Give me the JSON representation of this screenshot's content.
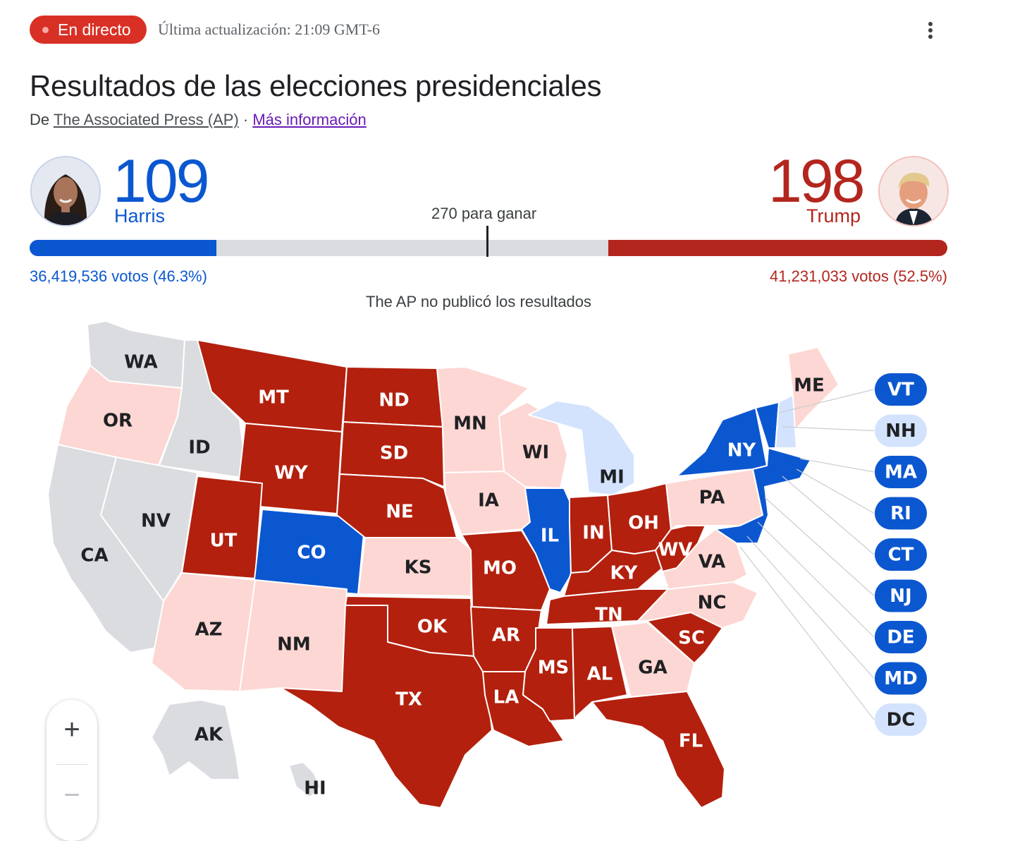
{
  "header": {
    "live_label": "En directo",
    "updated": "Última actualización: 21:09 GMT-6"
  },
  "title": "Resultados de las elecciones presidenciales",
  "source": {
    "prefix": "De",
    "publisher": "The Associated Press (AP)",
    "separator": "·",
    "more_link": "Más información"
  },
  "candidates": {
    "harris": {
      "name": "Harris",
      "electoral_votes": "109",
      "popular_votes": "36,419,536 votos (46.3%)",
      "bar_fraction": 0.2035,
      "color": "#0b57d0"
    },
    "trump": {
      "name": "Trump",
      "electoral_votes": "198",
      "popular_votes": "41,231,033 votos (52.5%)",
      "bar_fraction": 0.3695,
      "color": "#b3261e"
    }
  },
  "threshold_label": "270 para ganar",
  "ap_note": "The AP no publicó los resultados",
  "colors": {
    "dem_called": "#0b57d0",
    "dem_leaning": "#d3e3fd",
    "rep_called": "#b3200e",
    "rep_leaning": "#fdd7d3",
    "no_results": "#dadce0"
  },
  "map": {
    "states": {
      "WA": "no_results",
      "OR": "rep_leaning",
      "CA": "no_results",
      "ID": "no_results",
      "NV": "no_results",
      "MT": "rep_called",
      "WY": "rep_called",
      "UT": "rep_called",
      "AZ": "rep_leaning",
      "CO": "dem_called",
      "NM": "rep_leaning",
      "ND": "rep_called",
      "SD": "rep_called",
      "NE": "rep_called",
      "KS": "rep_leaning",
      "OK": "rep_called",
      "TX": "rep_called",
      "MN": "rep_leaning",
      "IA": "rep_leaning",
      "MO": "rep_called",
      "AR": "rep_called",
      "LA": "rep_called",
      "WI": "rep_leaning",
      "IL": "dem_called",
      "MI": "dem_leaning",
      "IN": "rep_called",
      "OH": "rep_called",
      "KY": "rep_called",
      "TN": "rep_called",
      "MS": "rep_called",
      "AL": "rep_called",
      "GA": "rep_leaning",
      "FL": "rep_called",
      "SC": "rep_called",
      "NC": "rep_leaning",
      "VA": "rep_leaning",
      "WV": "rep_called",
      "PA": "rep_leaning",
      "NY": "dem_called",
      "ME": "rep_leaning",
      "AK": "no_results",
      "HI": "no_results"
    },
    "callouts": [
      {
        "label": "VT",
        "status": "dem_called"
      },
      {
        "label": "NH",
        "status": "dem_leaning"
      },
      {
        "label": "MA",
        "status": "dem_called"
      },
      {
        "label": "RI",
        "status": "dem_called"
      },
      {
        "label": "CT",
        "status": "dem_called"
      },
      {
        "label": "NJ",
        "status": "dem_called"
      },
      {
        "label": "DE",
        "status": "dem_called"
      },
      {
        "label": "MD",
        "status": "dem_called"
      },
      {
        "label": "DC",
        "status": "dem_leaning"
      }
    ]
  },
  "zoom": {
    "in": "+",
    "out": "−"
  }
}
